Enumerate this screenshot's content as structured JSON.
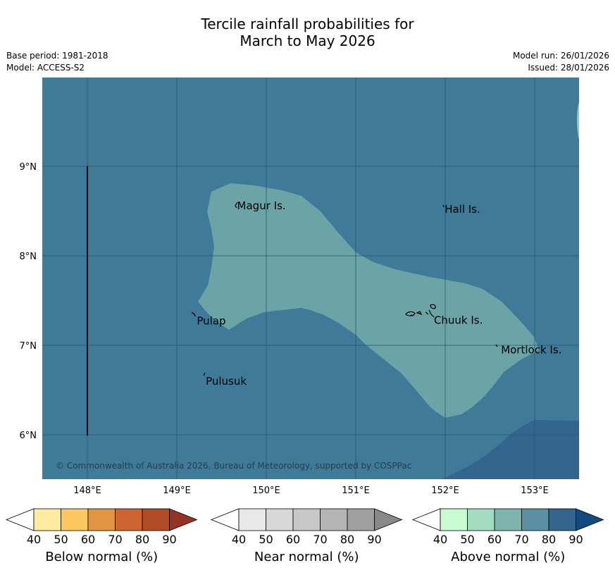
{
  "title": [
    "Tercile rainfall probabilities for",
    "March to May 2026"
  ],
  "meta_left": [
    "Base period: 1981-2018",
    "Model: ACCESS-S2"
  ],
  "meta_right": [
    "Model run: 26/01/2026",
    "Issued: 28/01/2026"
  ],
  "map": {
    "lon_ticks": [
      "148°E",
      "149°E",
      "150°E",
      "151°E",
      "152°E",
      "153°E"
    ],
    "lat_ticks": [
      "9°N",
      "8°N",
      "7°N",
      "6°N"
    ],
    "background_color": "#3f7a99",
    "near_normal_color": "#6ba3a6",
    "high_above_color": "#33658f",
    "copyright": "© Commonwealth of Australia 2026, Bureau of Meteorology, supported by COSPPac",
    "places": [
      {
        "name": "Magur Is.",
        "lon": 149.65,
        "lat": 8.56
      },
      {
        "name": "Hall Is.",
        "lon": 151.97,
        "lat": 8.52
      },
      {
        "name": "Pulap",
        "lon": 149.2,
        "lat": 7.27
      },
      {
        "name": "Chuuk Is.",
        "lon": 151.85,
        "lat": 7.28
      },
      {
        "name": "Mortlock Is.",
        "lon": 152.6,
        "lat": 6.95
      },
      {
        "name": "Pulusuk",
        "lon": 149.3,
        "lat": 6.6
      }
    ]
  },
  "colorbars": [
    {
      "label": "Below normal (%)",
      "ticks": [
        "40",
        "50",
        "60",
        "70",
        "80",
        "90"
      ],
      "colors": [
        "#ffeca0",
        "#fdc862",
        "#e29644",
        "#ce6432",
        "#b24b26",
        "#923524"
      ]
    },
    {
      "label": "Near normal (%)",
      "ticks": [
        "40",
        "50",
        "60",
        "70",
        "80",
        "90"
      ],
      "colors": [
        "#e8e8e8",
        "#d8d8d8",
        "#c8c8c8",
        "#b4b4b4",
        "#a0a0a0",
        "#888888"
      ]
    },
    {
      "label": "Above normal (%)",
      "ticks": [
        "40",
        "50",
        "60",
        "70",
        "80",
        "90"
      ],
      "colors": [
        "#c8fbd0",
        "#a3dbc0",
        "#7db4ae",
        "#5a90a1",
        "#33658f",
        "#134a82"
      ]
    }
  ]
}
